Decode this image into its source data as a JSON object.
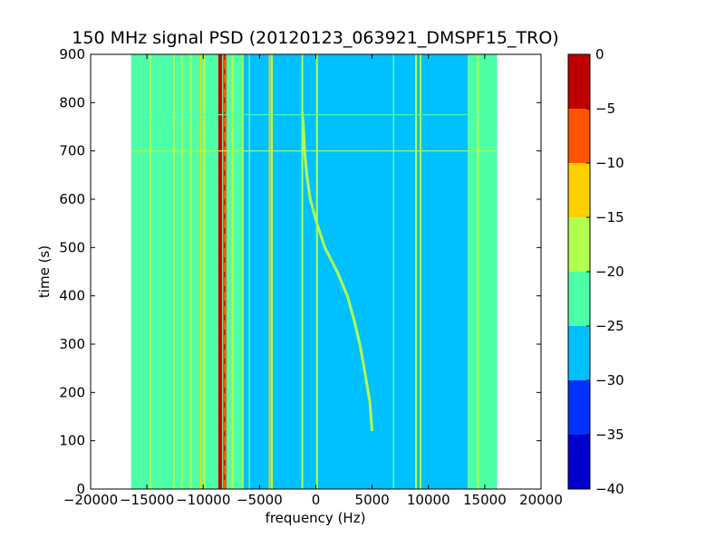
{
  "chart_data": {
    "type": "heatmap",
    "title": "150 MHz signal PSD (20120123_063921_DMSPF15_TRO)",
    "xlabel": "frequency (Hz)",
    "ylabel": "time (s)",
    "xlim": [
      -20000,
      20000
    ],
    "ylim": [
      0,
      900
    ],
    "xticks": [
      -20000,
      -15000,
      -10000,
      -5000,
      0,
      5000,
      10000,
      15000,
      20000
    ],
    "xtick_labels": [
      "−20000",
      "−15000",
      "−10000",
      "−5000",
      "0",
      "5000",
      "10000",
      "15000",
      "20000"
    ],
    "yticks": [
      0,
      100,
      200,
      300,
      400,
      500,
      600,
      700,
      800,
      900
    ],
    "ytick_labels": [
      "0",
      "100",
      "200",
      "300",
      "400",
      "500",
      "600",
      "700",
      "800",
      "900"
    ],
    "data_extent": {
      "f_min": -16400,
      "f_max": 16100,
      "t_min": 0,
      "t_max": 900
    },
    "colorbar": {
      "levels": [
        -40,
        -35,
        -30,
        -25,
        -20,
        -15,
        -10,
        -5,
        0
      ],
      "tick_labels": [
        "−40",
        "−35",
        "−30",
        "−25",
        "−20",
        "−15",
        "−10",
        "−5",
        "0"
      ],
      "colors": [
        "#0000cd",
        "#0033ff",
        "#00c0ff",
        "#4dffa6",
        "#b2ff4d",
        "#ffd000",
        "#ff5500",
        "#c00000"
      ]
    },
    "background_bands": [
      {
        "f_start": -16400,
        "f_end": -6500,
        "level_bin": 3
      },
      {
        "f_start": -6500,
        "f_end": 7000,
        "level_bin": 2
      },
      {
        "f_start": 7000,
        "f_end": 13500,
        "level_bin": 2
      },
      {
        "f_start": 13500,
        "f_end": 16100,
        "level_bin": 3
      }
    ],
    "vertical_lines": [
      {
        "f": -14700,
        "level_bin": 4
      },
      {
        "f": -13800,
        "level_bin": 3
      },
      {
        "f": -12600,
        "level_bin": 4
      },
      {
        "f": -11900,
        "level_bin": 4
      },
      {
        "f": -11100,
        "level_bin": 4
      },
      {
        "f": -10700,
        "level_bin": 3
      },
      {
        "f": -10200,
        "level_bin": 5
      },
      {
        "f": -9900,
        "level_bin": 4
      },
      {
        "f": -8500,
        "level_bin": 7
      },
      {
        "f": -8100,
        "level_bin": 6
      },
      {
        "f": -7400,
        "level_bin": 4
      },
      {
        "f": -6500,
        "level_bin": 4
      },
      {
        "f": -5900,
        "level_bin": 3
      },
      {
        "f": -4100,
        "level_bin": 5
      },
      {
        "f": -3900,
        "level_bin": 4
      },
      {
        "f": -1200,
        "level_bin": 4
      },
      {
        "f": 100,
        "level_bin": 4
      },
      {
        "f": 6900,
        "level_bin": 3
      },
      {
        "f": 8900,
        "level_bin": 4
      },
      {
        "f": 9300,
        "level_bin": 4
      },
      {
        "f": 14400,
        "level_bin": 4
      }
    ],
    "doppler_trace": {
      "t": [
        120,
        180,
        250,
        300,
        350,
        400,
        450,
        500,
        550,
        600,
        650,
        700,
        750,
        780
      ],
      "f": [
        5000,
        4800,
        4300,
        3900,
        3400,
        2800,
        1900,
        800,
        100,
        -500,
        -800,
        -1000,
        -1100,
        -1200
      ],
      "level_bin": 4
    },
    "horizontal_lines": [
      {
        "t": 700,
        "level_bin": 4
      },
      {
        "t": 775,
        "level_bin": 3
      }
    ]
  }
}
